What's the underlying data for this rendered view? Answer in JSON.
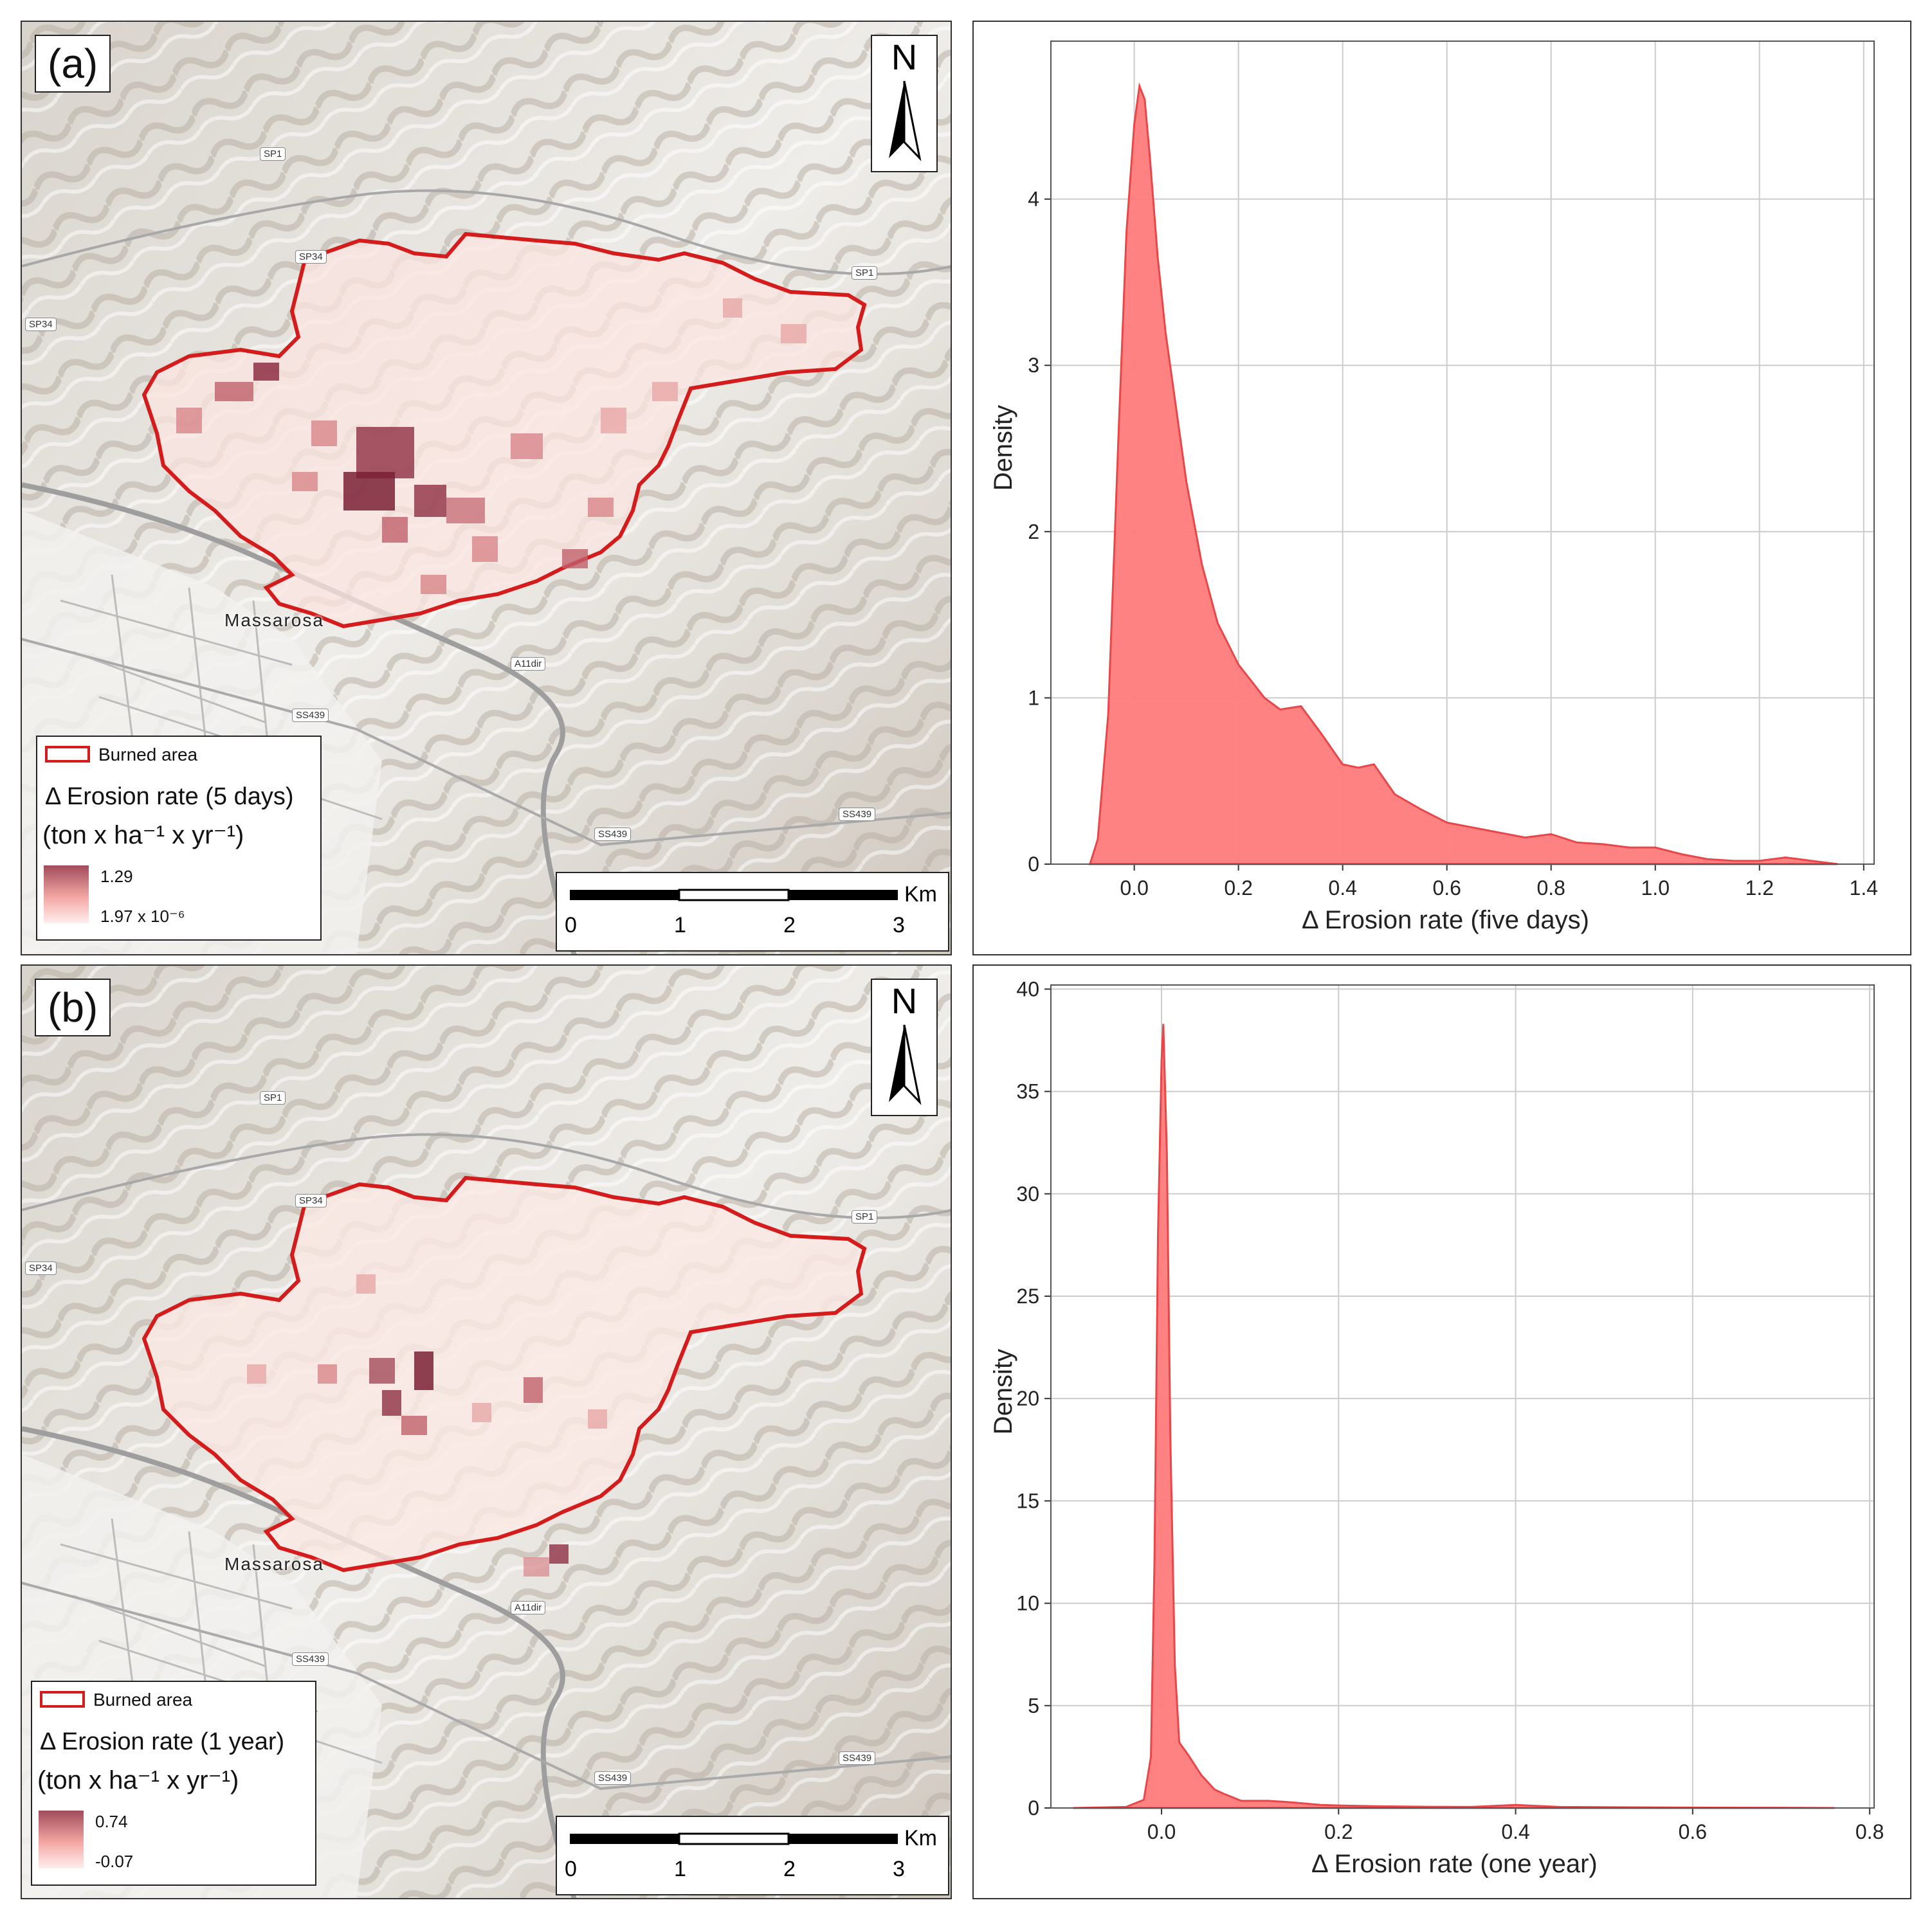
{
  "panels": [
    {
      "id": "a",
      "label": "(a)",
      "north_label": "N",
      "legend": {
        "burned_label": "Burned area",
        "title_line1": "Δ Erosion rate (5 days)",
        "title_line2": "(ton x ha⁻¹ x yr⁻¹)",
        "max_label": "1.29",
        "min_label": "1.97 x 10⁻⁶"
      },
      "scale": {
        "unit": "Km",
        "ticks": [
          "0",
          "1",
          "2",
          "3"
        ]
      },
      "places": {
        "town": "Massarosa",
        "sp1": "SP1",
        "sp1_east": "SP1",
        "sp34": "SP34",
        "sp34_west": "SP34",
        "a11": "A11dir",
        "ss439": "SS439",
        "ss439_east": "SS439",
        "ss439_south": "SS439"
      }
    },
    {
      "id": "b",
      "label": "(b)",
      "north_label": "N",
      "legend": {
        "burned_label": "Burned area",
        "title_line1": "Δ Erosion rate (1 year)",
        "title_line2": "(ton x ha⁻¹ x yr⁻¹)",
        "max_label": "0.74",
        "min_label": "-0.07"
      },
      "scale": {
        "unit": "Km",
        "ticks": [
          "0",
          "1",
          "2",
          "3"
        ]
      },
      "places": {
        "town": "Massarosa",
        "sp1": "SP1",
        "sp1_east": "SP1",
        "sp34": "SP34",
        "sp34_west": "SP34",
        "a11": "A11dir",
        "ss439": "SS439",
        "ss439_east": "SS439",
        "ss439_south": "SS439"
      }
    }
  ],
  "colors": {
    "fill": "#ff7b7b",
    "line": "#e8474a",
    "boundary": "#d41c1c",
    "grid": "#cccccc"
  },
  "chart_data": [
    {
      "type": "area",
      "title": "",
      "xlabel": "Δ Erosion rate (five days)",
      "ylabel": "Density",
      "xlim": [
        -0.16,
        1.42
      ],
      "ylim": [
        0,
        4.95
      ],
      "xticks": [
        0.0,
        0.2,
        0.4,
        0.6,
        0.8,
        1.0,
        1.2,
        1.4
      ],
      "yticks": [
        0,
        1,
        2,
        3,
        4
      ],
      "xtick_labels": [
        "0.0",
        "0.2",
        "0.4",
        "0.6",
        "0.8",
        "1.0",
        "1.2",
        "1.4"
      ],
      "ytick_labels": [
        "0",
        "1",
        "2",
        "3",
        "4"
      ],
      "x": [
        -0.085,
        -0.07,
        -0.05,
        -0.03,
        -0.015,
        0.0,
        0.01,
        0.02,
        0.03,
        0.045,
        0.06,
        0.08,
        0.1,
        0.13,
        0.16,
        0.2,
        0.25,
        0.28,
        0.32,
        0.36,
        0.4,
        0.43,
        0.46,
        0.5,
        0.55,
        0.6,
        0.65,
        0.7,
        0.75,
        0.8,
        0.85,
        0.9,
        0.95,
        1.0,
        1.05,
        1.1,
        1.15,
        1.2,
        1.25,
        1.3,
        1.35
      ],
      "y": [
        0.0,
        0.15,
        0.9,
        2.6,
        3.8,
        4.45,
        4.68,
        4.6,
        4.25,
        3.65,
        3.2,
        2.75,
        2.3,
        1.8,
        1.45,
        1.2,
        1.0,
        0.93,
        0.95,
        0.78,
        0.6,
        0.58,
        0.6,
        0.42,
        0.33,
        0.25,
        0.22,
        0.19,
        0.16,
        0.18,
        0.13,
        0.12,
        0.1,
        0.1,
        0.06,
        0.03,
        0.02,
        0.02,
        0.04,
        0.02,
        0.0
      ]
    },
    {
      "type": "area",
      "title": "",
      "xlabel": "Δ Erosion rate (one year)",
      "ylabel": "Density",
      "xlim": [
        -0.125,
        0.805
      ],
      "ylim": [
        0,
        40.2
      ],
      "xticks": [
        0.0,
        0.2,
        0.4,
        0.6,
        0.8
      ],
      "yticks": [
        0,
        5,
        10,
        15,
        20,
        25,
        30,
        35,
        40
      ],
      "xtick_labels": [
        "0.0",
        "0.2",
        "0.4",
        "0.6",
        "0.8"
      ],
      "ytick_labels": [
        "0",
        "5",
        "10",
        "15",
        "20",
        "25",
        "30",
        "35",
        "40"
      ],
      "x": [
        -0.1,
        -0.04,
        -0.02,
        -0.012,
        -0.008,
        -0.004,
        0.0,
        0.002,
        0.006,
        0.01,
        0.015,
        0.02,
        0.03,
        0.045,
        0.06,
        0.07,
        0.09,
        0.12,
        0.14,
        0.18,
        0.2,
        0.25,
        0.3,
        0.35,
        0.4,
        0.45,
        0.5,
        0.6,
        0.7,
        0.76
      ],
      "y": [
        0.0,
        0.05,
        0.4,
        2.5,
        12.0,
        28.0,
        36.5,
        38.3,
        32.0,
        18.0,
        7.0,
        3.2,
        2.6,
        1.6,
        0.9,
        0.7,
        0.35,
        0.35,
        0.3,
        0.15,
        0.12,
        0.08,
        0.06,
        0.05,
        0.15,
        0.05,
        0.04,
        0.02,
        0.01,
        0.0
      ]
    }
  ]
}
